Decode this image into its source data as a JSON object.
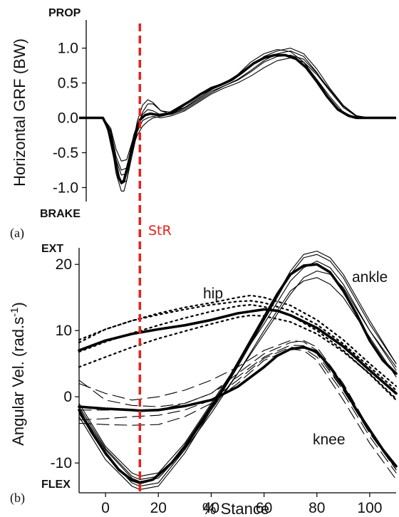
{
  "colors": {
    "line": "#000000",
    "marker": "#e8211a"
  },
  "top_panel": {
    "label": "(a)",
    "ylabel": "Horizontal GRF (BW)",
    "prop_label": "PROP",
    "brake_label": "BRAKE"
  },
  "bottom_panel": {
    "label": "(b)",
    "ylabel_main": "Angular Vel. (rad.s",
    "ylabel_sup": "-1",
    "ylabel_close": ")",
    "ext_label": "EXT",
    "flex_label": "FLEX",
    "xlabel": "% Stance",
    "hip_label": "hip",
    "knee_label": "knee",
    "ankle_label": "ankle"
  },
  "marker": {
    "label": "StR",
    "x": 13
  },
  "chart_data": [
    {
      "type": "line",
      "panel": "a",
      "xlim": [
        -10,
        110
      ],
      "ylim": [
        -1.2,
        1.2
      ],
      "yticks": [
        1.0,
        0.5,
        0.0,
        -0.5,
        -1.0
      ],
      "ytick_labels": [
        "1.0",
        "0.5",
        "0.0",
        "-0.5",
        "-1.0"
      ],
      "series": [
        {
          "style": "mean",
          "x": [
            -10,
            -5,
            -1,
            1,
            3,
            5,
            6,
            7,
            9,
            11,
            13,
            15,
            17,
            20,
            24,
            28,
            32,
            36,
            40,
            44,
            48,
            52,
            56,
            60,
            64,
            68,
            72,
            76,
            80,
            84,
            88,
            92,
            95,
            98,
            101,
            110
          ],
          "y": [
            0,
            0,
            0,
            -0.15,
            -0.5,
            -0.85,
            -0.93,
            -0.9,
            -0.6,
            -0.25,
            -0.03,
            0.04,
            0.06,
            0.04,
            0.06,
            0.15,
            0.24,
            0.34,
            0.42,
            0.48,
            0.55,
            0.66,
            0.78,
            0.86,
            0.9,
            0.9,
            0.85,
            0.72,
            0.52,
            0.3,
            0.12,
            0.03,
            0.0,
            0.0,
            0.0,
            0.0
          ]
        },
        {
          "style": "trial",
          "x": [
            -10,
            -1,
            2,
            4,
            6,
            7,
            8,
            10,
            12,
            14,
            16,
            18,
            21,
            25,
            30,
            35,
            40,
            45,
            50,
            55,
            60,
            65,
            70,
            75,
            80,
            85,
            90,
            95,
            100,
            110
          ],
          "y": [
            0,
            0,
            -0.3,
            -0.8,
            -1.05,
            -1.05,
            -0.9,
            -0.45,
            -0.05,
            0.18,
            0.26,
            0.22,
            0.1,
            0.05,
            0.18,
            0.33,
            0.44,
            0.5,
            0.62,
            0.8,
            0.92,
            0.98,
            0.95,
            0.8,
            0.55,
            0.3,
            0.08,
            0.0,
            0.0,
            0.0
          ]
        },
        {
          "style": "trial",
          "x": [
            -10,
            -1,
            2,
            4,
            6,
            8,
            10,
            12,
            14,
            16,
            18,
            21,
            25,
            30,
            35,
            40,
            45,
            50,
            55,
            60,
            65,
            70,
            75,
            80,
            85,
            90,
            95,
            100,
            110
          ],
          "y": [
            0,
            0,
            -0.15,
            -0.45,
            -0.62,
            -0.6,
            -0.35,
            -0.1,
            0.05,
            0.12,
            0.1,
            0.04,
            0.05,
            0.12,
            0.24,
            0.36,
            0.46,
            0.55,
            0.68,
            0.82,
            0.92,
            0.96,
            0.88,
            0.65,
            0.38,
            0.15,
            0.02,
            0.0,
            0.0
          ]
        },
        {
          "style": "trial",
          "x": [
            -10,
            -1,
            2,
            4,
            6,
            8,
            10,
            12,
            14,
            16,
            18,
            21,
            25,
            30,
            35,
            40,
            45,
            50,
            55,
            60,
            65,
            70,
            75,
            80,
            85,
            90,
            95,
            100,
            110
          ],
          "y": [
            0,
            0,
            -0.25,
            -0.7,
            -0.95,
            -0.9,
            -0.55,
            -0.2,
            -0.04,
            0.0,
            0.02,
            0.0,
            0.03,
            0.1,
            0.22,
            0.34,
            0.43,
            0.5,
            0.6,
            0.72,
            0.82,
            0.86,
            0.8,
            0.62,
            0.38,
            0.15,
            0.02,
            0.0,
            0.0
          ]
        },
        {
          "style": "trial",
          "x": [
            -10,
            -1,
            2,
            4,
            6,
            8,
            10,
            12,
            14,
            16,
            18,
            21,
            25,
            30,
            35,
            40,
            45,
            50,
            55,
            60,
            65,
            70,
            75,
            80,
            85,
            90,
            95,
            100,
            110
          ],
          "y": [
            0,
            0,
            -0.2,
            -0.6,
            -0.82,
            -0.8,
            -0.5,
            -0.15,
            0.08,
            0.2,
            0.2,
            0.1,
            0.08,
            0.15,
            0.28,
            0.4,
            0.5,
            0.6,
            0.74,
            0.88,
            0.96,
            1.0,
            0.92,
            0.7,
            0.42,
            0.18,
            0.03,
            0.0,
            0.0
          ]
        },
        {
          "style": "trial",
          "x": [
            -10,
            -1,
            2,
            4,
            6,
            8,
            10,
            12,
            14,
            16,
            18,
            21,
            25,
            30,
            35,
            40,
            45,
            50,
            55,
            60,
            65,
            70,
            75,
            80,
            85,
            90,
            95,
            100,
            110
          ],
          "y": [
            0,
            0,
            -0.18,
            -0.55,
            -0.75,
            -0.72,
            -0.45,
            -0.25,
            -0.12,
            -0.05,
            0.0,
            0.02,
            0.06,
            0.14,
            0.26,
            0.38,
            0.46,
            0.54,
            0.66,
            0.8,
            0.88,
            0.9,
            0.84,
            0.64,
            0.4,
            0.17,
            0.03,
            0.0,
            0.0
          ]
        }
      ]
    },
    {
      "type": "line",
      "panel": "b",
      "xlim": [
        -10,
        110
      ],
      "ylim": [
        -14.5,
        22.5
      ],
      "xticks": [
        0,
        20,
        40,
        60,
        80,
        100
      ],
      "xtick_labels": [
        "0",
        "20",
        "40",
        "60",
        "80",
        "100"
      ],
      "yticks": [
        20,
        10,
        0,
        -10
      ],
      "ytick_labels": [
        "20",
        "10",
        "0",
        "-10"
      ],
      "series": [
        {
          "joint": "ankle",
          "style": "mean",
          "x": [
            -10,
            -5,
            0,
            5,
            10,
            13,
            18,
            25,
            30,
            35,
            40,
            45,
            50,
            55,
            60,
            65,
            70,
            75,
            80,
            85,
            90,
            95,
            100,
            105,
            110
          ],
          "y": [
            -2,
            -5.5,
            -8.5,
            -11,
            -12.6,
            -13,
            -12.5,
            -10,
            -7.5,
            -4.5,
            -1.5,
            1.5,
            5,
            8.5,
            12,
            15.5,
            18.5,
            19.8,
            20,
            18.8,
            16,
            12.5,
            8.5,
            5.5,
            3.5
          ]
        },
        {
          "joint": "ankle",
          "style": "trial",
          "x": [
            -10,
            0,
            10,
            13,
            20,
            30,
            40,
            50,
            60,
            70,
            75,
            80,
            85,
            90,
            100,
            110
          ],
          "y": [
            -1,
            -7.5,
            -11.5,
            -12,
            -11.5,
            -7,
            -1,
            5,
            11,
            17.5,
            19.5,
            20.5,
            19.5,
            17,
            10,
            4
          ]
        },
        {
          "joint": "ankle",
          "style": "trial",
          "x": [
            -10,
            0,
            10,
            13,
            20,
            30,
            40,
            50,
            60,
            70,
            75,
            80,
            85,
            90,
            100,
            110
          ],
          "y": [
            -3,
            -9.5,
            -13.5,
            -14,
            -13.5,
            -8.5,
            -2,
            4.5,
            11.5,
            18.5,
            21,
            21.5,
            20.5,
            18,
            11,
            5
          ]
        },
        {
          "joint": "ankle",
          "style": "trial",
          "x": [
            -10,
            0,
            10,
            13,
            20,
            30,
            40,
            50,
            60,
            70,
            75,
            80,
            85,
            90,
            100,
            110
          ],
          "y": [
            -2.5,
            -8.8,
            -13,
            -13.5,
            -13,
            -8,
            -1.5,
            5,
            12,
            19,
            21.5,
            22,
            21,
            18.5,
            11.5,
            5
          ]
        },
        {
          "joint": "ankle",
          "style": "trial",
          "x": [
            -10,
            0,
            10,
            13,
            20,
            30,
            40,
            50,
            60,
            70,
            75,
            80,
            85,
            90,
            100,
            110
          ],
          "y": [
            -1.5,
            -7.8,
            -12,
            -12.5,
            -12,
            -7.8,
            -2,
            3.5,
            9.5,
            15.5,
            18,
            19,
            18.5,
            16.5,
            10,
            4.5
          ]
        },
        {
          "joint": "ankle",
          "style": "trial",
          "x": [
            -10,
            0,
            10,
            13,
            20,
            30,
            40,
            50,
            60,
            70,
            75,
            80,
            85,
            90,
            100,
            110
          ],
          "y": [
            -2,
            -8,
            -12.3,
            -12.8,
            -12.3,
            -8,
            -2.5,
            3.5,
            10,
            16,
            17.5,
            18,
            17,
            15,
            9,
            3
          ]
        },
        {
          "joint": "knee",
          "style": "mean",
          "x": [
            -10,
            0,
            10,
            13,
            20,
            30,
            40,
            50,
            60,
            65,
            70,
            75,
            80,
            85,
            90,
            95,
            100,
            105,
            110
          ],
          "y": [
            -1.5,
            -1.8,
            -2,
            -2.1,
            -2,
            -1.4,
            -0.5,
            1.5,
            4.5,
            6.2,
            7.2,
            7.5,
            6.8,
            4.5,
            1.5,
            -2,
            -5,
            -8,
            -10.5
          ]
        },
        {
          "joint": "knee",
          "style": "trial",
          "x": [
            -10,
            0,
            10,
            20,
            30,
            40,
            50,
            60,
            70,
            75,
            80,
            90,
            100,
            110
          ],
          "y": [
            2.5,
            -0.5,
            -1.3,
            -1.5,
            -1,
            0.5,
            3.5,
            6.5,
            8.2,
            8.5,
            7.5,
            2,
            -5,
            -11
          ]
        },
        {
          "joint": "knee",
          "style": "trial",
          "x": [
            -10,
            0,
            10,
            20,
            30,
            40,
            50,
            60,
            70,
            75,
            80,
            90,
            100,
            110
          ],
          "y": [
            2,
            0.5,
            -0.5,
            0,
            1,
            2.5,
            4.5,
            7,
            8.5,
            8.3,
            7,
            1,
            -5.5,
            -11
          ]
        },
        {
          "joint": "knee",
          "style": "trial",
          "x": [
            -10,
            0,
            10,
            20,
            30,
            40,
            50,
            60,
            70,
            75,
            80,
            90,
            100,
            110
          ],
          "y": [
            -4,
            -4.2,
            -4.3,
            -4.2,
            -3,
            -1,
            2,
            5.5,
            7.2,
            7,
            5.5,
            -0.5,
            -7,
            -12.5
          ]
        },
        {
          "joint": "knee",
          "style": "trial",
          "x": [
            -10,
            0,
            10,
            20,
            30,
            40,
            50,
            60,
            70,
            75,
            80,
            90,
            100,
            110
          ],
          "y": [
            -3.5,
            -3.3,
            -3,
            -2.8,
            -2,
            -0.5,
            2.5,
            5.8,
            7.5,
            7.3,
            6,
            0.5,
            -6,
            -11.5
          ]
        },
        {
          "joint": "knee",
          "style": "trial",
          "x": [
            -10,
            0,
            10,
            20,
            30,
            40,
            50,
            60,
            70,
            75,
            80,
            90,
            100,
            110
          ],
          "y": [
            -2,
            -2,
            -2,
            -2,
            -1,
            0.5,
            3,
            6,
            7.8,
            7.7,
            6.5,
            1,
            -5.5,
            -11
          ]
        },
        {
          "joint": "hip",
          "style": "mean",
          "x": [
            -10,
            0,
            10,
            20,
            30,
            40,
            50,
            60,
            65,
            70,
            80,
            90,
            100,
            110
          ],
          "y": [
            7,
            8.5,
            9.5,
            10.2,
            10.8,
            11.6,
            12.6,
            13.2,
            13,
            12.3,
            10.4,
            7.6,
            4,
            0.5
          ]
        },
        {
          "joint": "hip",
          "style": "trial",
          "x": [
            -10,
            0,
            10,
            20,
            30,
            40,
            50,
            55,
            60,
            70,
            80,
            90,
            100,
            110
          ],
          "y": [
            8.2,
            10.2,
            11.5,
            12.6,
            13.5,
            14.2,
            15,
            15.3,
            15,
            13.8,
            11.6,
            8.6,
            5,
            1.6
          ]
        },
        {
          "joint": "hip",
          "style": "trial",
          "x": [
            -10,
            0,
            10,
            20,
            30,
            40,
            50,
            55,
            60,
            70,
            80,
            90,
            100,
            110
          ],
          "y": [
            8.6,
            10.2,
            11.5,
            12.4,
            13.2,
            13.9,
            14.4,
            14.5,
            14.2,
            13,
            10.9,
            8,
            4.5,
            1
          ]
        },
        {
          "joint": "hip",
          "style": "trial",
          "x": [
            -10,
            0,
            10,
            20,
            30,
            40,
            50,
            55,
            60,
            70,
            80,
            90,
            100,
            110
          ],
          "y": [
            6.8,
            8.3,
            9.6,
            10.8,
            11.9,
            12.9,
            13.7,
            13.9,
            13.6,
            12.3,
            10,
            7,
            3.4,
            -0.5
          ]
        },
        {
          "joint": "hip",
          "style": "trial",
          "x": [
            -10,
            0,
            10,
            20,
            30,
            40,
            50,
            55,
            60,
            70,
            80,
            90,
            100,
            110
          ],
          "y": [
            4.5,
            6,
            7.5,
            8.8,
            9.9,
            11,
            12,
            12.3,
            12.2,
            11.3,
            9.5,
            6.8,
            3.5,
            -0.3
          ]
        }
      ]
    }
  ]
}
